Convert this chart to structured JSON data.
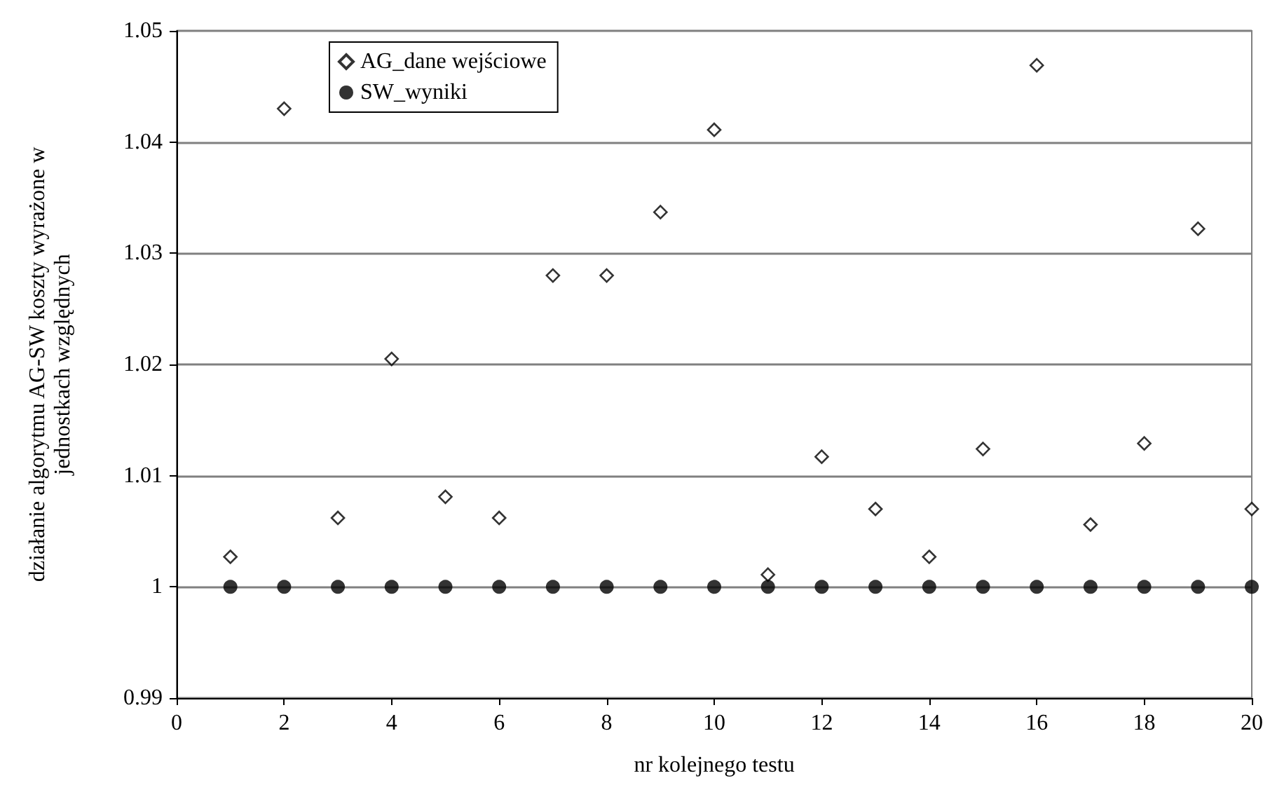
{
  "chart_data": {
    "type": "scatter",
    "xlabel": "nr kolejnego testu",
    "ylabel": "działanie algorytmu AG-SW koszty wyrażone w\njednostkach względnych",
    "x": [
      1,
      2,
      3,
      4,
      5,
      6,
      7,
      8,
      9,
      10,
      11,
      12,
      13,
      14,
      15,
      16,
      17,
      18,
      19,
      20
    ],
    "series": [
      {
        "name": "AG_dane wejściowe",
        "color": "#000000",
        "marker": "diamond",
        "values": [
          1.0027,
          1.043,
          1.0062,
          1.0205,
          1.0081,
          1.0062,
          1.028,
          1.028,
          1.0337,
          1.0411,
          1.0011,
          1.0117,
          1.007,
          1.0027,
          1.0124,
          1.0469,
          1.0056,
          1.0129,
          1.0322,
          1.007
        ]
      },
      {
        "name": "SW_wyniki",
        "color": "#000000",
        "marker": "circle",
        "values": [
          1,
          1,
          1,
          1,
          1,
          1,
          1,
          1,
          1,
          1,
          1,
          1,
          1,
          1,
          1,
          1,
          1,
          1,
          1,
          1
        ]
      }
    ],
    "xlim": [
      0,
      20
    ],
    "xticks": [
      0,
      2,
      4,
      6,
      8,
      10,
      12,
      14,
      16,
      18,
      20
    ],
    "ylim": [
      0.99,
      1.05
    ],
    "yticks": [
      0.99,
      1,
      1.01,
      1.02,
      1.03,
      1.04,
      1.05
    ],
    "grid": "y",
    "legend": "top left"
  }
}
